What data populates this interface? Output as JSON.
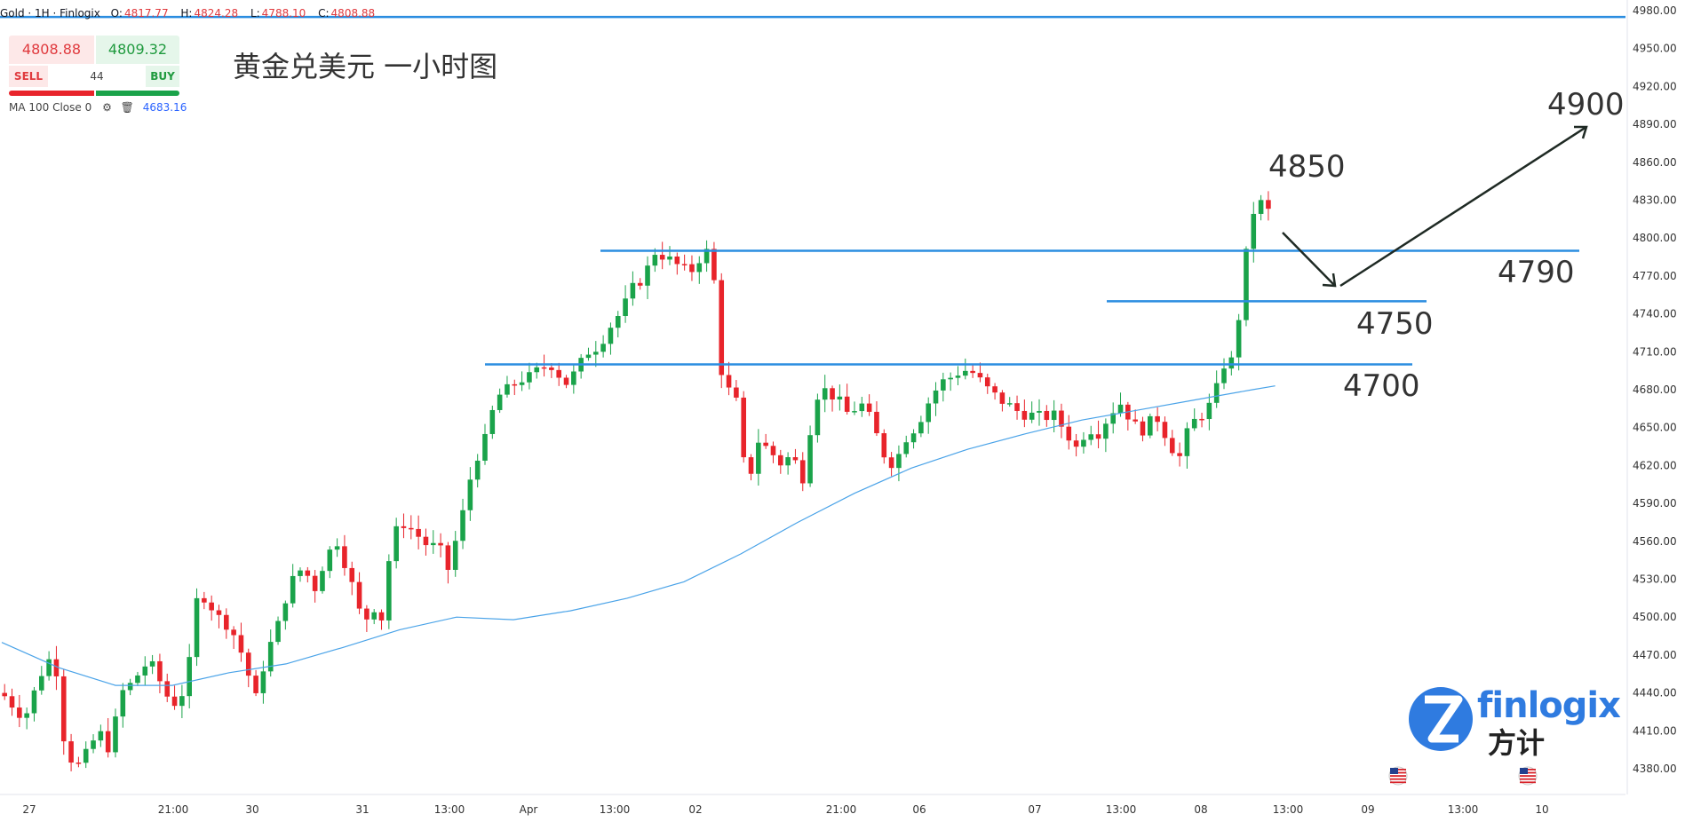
{
  "header": {
    "symbol": "Gold · 1H · Finlogix",
    "open_label": "O:",
    "open": "4817.77",
    "high_label": "H:",
    "high": "4824.28",
    "low_label": "L:",
    "low": "4788.10",
    "close_label": "C:",
    "close": "4808.88"
  },
  "trade": {
    "sell_price": "4808.88",
    "buy_price": "4809.32",
    "sell_label": "SELL",
    "buy_label": "BUY",
    "spread": "44"
  },
  "indicator": {
    "label": "MA 100 Close 0",
    "value": "4683.16",
    "gear_icon": "gear-icon",
    "trash_icon": "trash-icon"
  },
  "title": "黄金兑美元 一小时图",
  "annotations": {
    "l4900": "4900",
    "l4850": "4850",
    "l4790": "4790",
    "l4750": "4750",
    "l4700": "4700"
  },
  "logo": {
    "text": "finlogix",
    "cn": "方计"
  },
  "colors": {
    "up": "#1aa34a",
    "down": "#e8242b",
    "hline": "#2b8de0",
    "ma": "#4aa3e8",
    "arrow": "#1f2a24"
  },
  "chart_data": {
    "type": "candlestick",
    "title": "黄金兑美元 一小时图",
    "y_ticks": [
      "4980.00",
      "4950.00",
      "4920.00",
      "4890.00",
      "4860.00",
      "4830.00",
      "4800.00",
      "4770.00",
      "4740.00",
      "4710.00",
      "4680.00",
      "4650.00",
      "4620.00",
      "4590.00",
      "4560.00",
      "4530.00",
      "4500.00",
      "4470.00",
      "4440.00",
      "4410.00",
      "4380.00"
    ],
    "x_ticks": [
      "27",
      "21:00",
      "30",
      "31",
      "13:00",
      "Apr",
      "13:00",
      "02",
      "21:00",
      "06",
      "07",
      "13:00",
      "08",
      "13:00",
      "09",
      "13:00",
      "10"
    ],
    "ylim": [
      4360,
      4990
    ],
    "horizontal_levels": [
      4975,
      4790,
      4750,
      4700
    ],
    "annotated_levels": [
      4900,
      4850,
      4790,
      4750,
      4700
    ],
    "ma_period": 100,
    "ma_current": 4683.16,
    "last_ohlc": {
      "open": 4817.77,
      "high": 4824.28,
      "low": 4788.1,
      "close": 4808.88
    },
    "close_path": [
      [
        0,
        4440
      ],
      [
        8,
        4420
      ],
      [
        16,
        4468
      ],
      [
        20,
        4455
      ],
      [
        22,
        4400
      ],
      [
        26,
        4380
      ],
      [
        30,
        4392
      ],
      [
        34,
        4410
      ],
      [
        38,
        4395
      ],
      [
        42,
        4440
      ],
      [
        46,
        4448
      ],
      [
        50,
        4462
      ],
      [
        54,
        4460
      ],
      [
        57,
        4440
      ],
      [
        61,
        4432
      ],
      [
        65,
        4445
      ],
      [
        69,
        4520
      ],
      [
        72,
        4515
      ],
      [
        76,
        4500
      ],
      [
        79,
        4495
      ],
      [
        82,
        4485
      ],
      [
        86,
        4462
      ],
      [
        89,
        4432
      ],
      [
        93,
        4470
      ],
      [
        97,
        4492
      ],
      [
        101,
        4525
      ],
      [
        106,
        4540
      ],
      [
        110,
        4522
      ],
      [
        114,
        4548
      ],
      [
        118,
        4560
      ],
      [
        122,
        4535
      ],
      [
        127,
        4495
      ],
      [
        131,
        4508
      ],
      [
        134,
        4498
      ],
      [
        137,
        4562
      ],
      [
        141,
        4575
      ],
      [
        145,
        4568
      ],
      [
        149,
        4558
      ],
      [
        154,
        4554
      ],
      [
        157,
        4538
      ],
      [
        162,
        4580
      ],
      [
        166,
        4622
      ],
      [
        170,
        4640
      ],
      [
        174,
        4674
      ],
      [
        178,
        4680
      ],
      [
        182,
        4688
      ],
      [
        186,
        4690
      ],
      [
        190,
        4698
      ],
      [
        194,
        4700
      ],
      [
        198,
        4684
      ],
      [
        202,
        4694
      ],
      [
        206,
        4710
      ],
      [
        210,
        4715
      ],
      [
        214,
        4730
      ],
      [
        218,
        4742
      ],
      [
        222,
        4760
      ],
      [
        226,
        4770
      ],
      [
        230,
        4790
      ],
      [
        234,
        4784
      ],
      [
        238,
        4778
      ],
      [
        242,
        4772
      ],
      [
        246,
        4786
      ],
      [
        250,
        4792
      ],
      [
        252,
        4704
      ],
      [
        255,
        4682
      ],
      [
        259,
        4668
      ],
      [
        262,
        4600
      ],
      [
        266,
        4640
      ],
      [
        270,
        4632
      ],
      [
        274,
        4622
      ],
      [
        278,
        4628
      ],
      [
        282,
        4610
      ],
      [
        286,
        4675
      ],
      [
        290,
        4680
      ],
      [
        294,
        4672
      ],
      [
        298,
        4660
      ],
      [
        302,
        4670
      ],
      [
        306,
        4655
      ],
      [
        310,
        4630
      ],
      [
        314,
        4620
      ],
      [
        318,
        4642
      ],
      [
        322,
        4652
      ],
      [
        326,
        4670
      ],
      [
        330,
        4685
      ],
      [
        334,
        4690
      ],
      [
        338,
        4696
      ],
      [
        342,
        4693
      ],
      [
        346,
        4682
      ],
      [
        350,
        4674
      ],
      [
        354,
        4668
      ],
      [
        358,
        4662
      ],
      [
        362,
        4660
      ],
      [
        366,
        4658
      ],
      [
        370,
        4660
      ],
      [
        374,
        4648
      ],
      [
        378,
        4634
      ],
      [
        382,
        4650
      ],
      [
        386,
        4646
      ],
      [
        390,
        4662
      ],
      [
        394,
        4670
      ],
      [
        398,
        4652
      ],
      [
        402,
        4648
      ],
      [
        406,
        4660
      ],
      [
        410,
        4642
      ],
      [
        414,
        4624
      ],
      [
        418,
        4652
      ],
      [
        422,
        4660
      ],
      [
        426,
        4670
      ],
      [
        430,
        4700
      ],
      [
        434,
        4704
      ],
      [
        436,
        4760
      ],
      [
        440,
        4820
      ],
      [
        444,
        4830
      ],
      [
        448,
        4808
      ]
    ],
    "ma_path": [
      [
        0,
        4480
      ],
      [
        20,
        4460
      ],
      [
        40,
        4446
      ],
      [
        60,
        4446
      ],
      [
        80,
        4456
      ],
      [
        100,
        4463
      ],
      [
        120,
        4476
      ],
      [
        140,
        4490
      ],
      [
        160,
        4500
      ],
      [
        180,
        4498
      ],
      [
        200,
        4505
      ],
      [
        220,
        4515
      ],
      [
        240,
        4528
      ],
      [
        260,
        4550
      ],
      [
        280,
        4575
      ],
      [
        300,
        4598
      ],
      [
        320,
        4618
      ],
      [
        340,
        4633
      ],
      [
        360,
        4645
      ],
      [
        380,
        4656
      ],
      [
        400,
        4664
      ],
      [
        420,
        4672
      ],
      [
        440,
        4680
      ],
      [
        448,
        4683
      ]
    ]
  }
}
